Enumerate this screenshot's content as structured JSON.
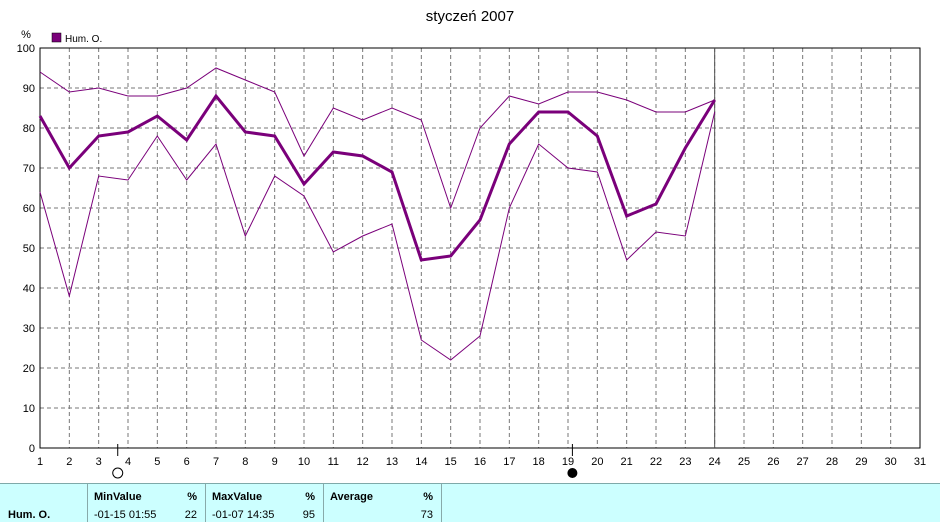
{
  "chart_data": {
    "type": "line",
    "title": "styczeń 2007",
    "ylabel": "%",
    "xlabel": "",
    "ylim": [
      0,
      100
    ],
    "xlim": [
      1,
      31
    ],
    "yticks": [
      0,
      10,
      20,
      30,
      40,
      50,
      60,
      70,
      80,
      90,
      100
    ],
    "xticks": [
      1,
      2,
      3,
      4,
      5,
      6,
      7,
      8,
      9,
      10,
      11,
      12,
      13,
      14,
      15,
      16,
      17,
      18,
      19,
      20,
      21,
      22,
      23,
      24,
      25,
      26,
      27,
      28,
      29,
      30,
      31
    ],
    "grid": true,
    "legend": {
      "position": "top-left",
      "entries": [
        {
          "label": "Hum. O.",
          "color": "#7a007a"
        }
      ]
    },
    "x": [
      1,
      2,
      3,
      4,
      5,
      6,
      7,
      8,
      9,
      10,
      11,
      12,
      13,
      14,
      15,
      16,
      17,
      18,
      19,
      20,
      21,
      22,
      23,
      24
    ],
    "series": [
      {
        "name": "Hum. O.",
        "role": "average",
        "color": "#7a007a",
        "values": [
          83,
          70,
          78,
          79,
          83,
          77,
          88,
          79,
          78,
          66,
          74,
          73,
          69,
          47,
          48,
          57,
          76,
          84,
          84,
          78,
          58,
          61,
          75,
          87
        ]
      },
      {
        "role": "max",
        "color": "#7a007a",
        "values": [
          94,
          89,
          90,
          88,
          88,
          90,
          95,
          92,
          89,
          73,
          85,
          82,
          85,
          82,
          60,
          80,
          88,
          86,
          89,
          89,
          87,
          84,
          84,
          87
        ]
      },
      {
        "role": "min",
        "color": "#7a007a",
        "values": [
          64,
          38,
          68,
          67,
          78,
          67,
          76,
          53,
          68,
          63,
          49,
          53,
          56,
          27,
          22,
          28,
          60,
          76,
          70,
          69,
          47,
          54,
          53,
          84
        ]
      }
    ],
    "current_day_marker": 24,
    "moon_phases": [
      {
        "day": 3.65,
        "phase": "full-moon"
      },
      {
        "day": 19.15,
        "phase": "new-moon"
      }
    ]
  },
  "stats": {
    "sensor_name": "Hum. O.",
    "min": {
      "header": "MinValue",
      "unit": "%",
      "time": "-01-15  01:55",
      "value": "22"
    },
    "max": {
      "header": "MaxValue",
      "unit": "%",
      "time": "-01-07  14:35",
      "value": "95"
    },
    "avg": {
      "header": "Average",
      "unit": "%",
      "value": "73"
    }
  }
}
